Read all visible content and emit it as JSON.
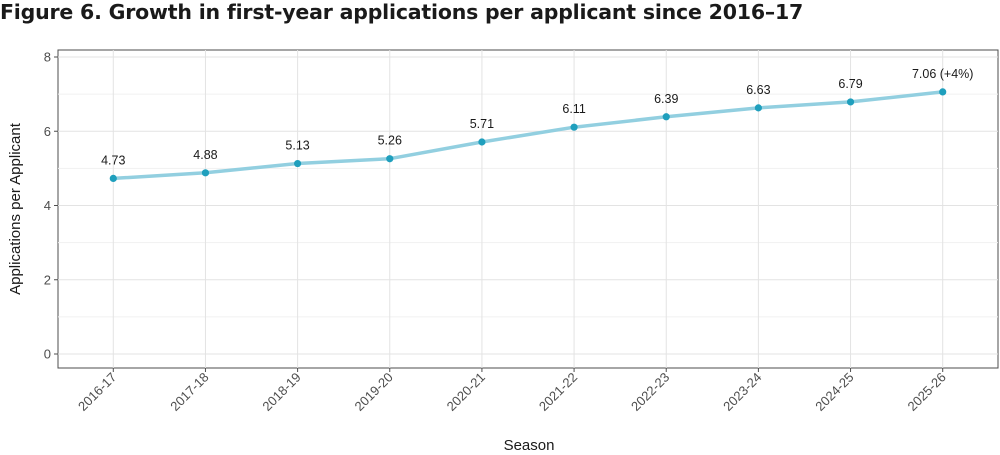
{
  "figure": {
    "title": "Figure 6. Growth in first-year applications per applicant since 2016–17"
  },
  "chart_data": {
    "type": "line",
    "xlabel": "Season",
    "ylabel": "Applications per Applicant",
    "categories": [
      "2016-17",
      "2017-18",
      "2018-19",
      "2019-20",
      "2020-21",
      "2021-22",
      "2022-23",
      "2023-24",
      "2024-25",
      "2025-26"
    ],
    "series": [
      {
        "values": [
          4.73,
          4.88,
          5.13,
          5.26,
          5.71,
          6.11,
          6.39,
          6.63,
          6.79,
          7.06
        ],
        "labels": [
          "4.73",
          "4.88",
          "5.13",
          "5.26",
          "5.71",
          "6.11",
          "6.39",
          "6.63",
          "6.79",
          "7.06 (+4%)"
        ],
        "line_color": "#92cfe0",
        "point_color": "#1f9fbd"
      }
    ],
    "ylim": [
      0,
      8
    ],
    "yticks": [
      0,
      2,
      4,
      6,
      8
    ],
    "grid": true,
    "legend": "none"
  }
}
